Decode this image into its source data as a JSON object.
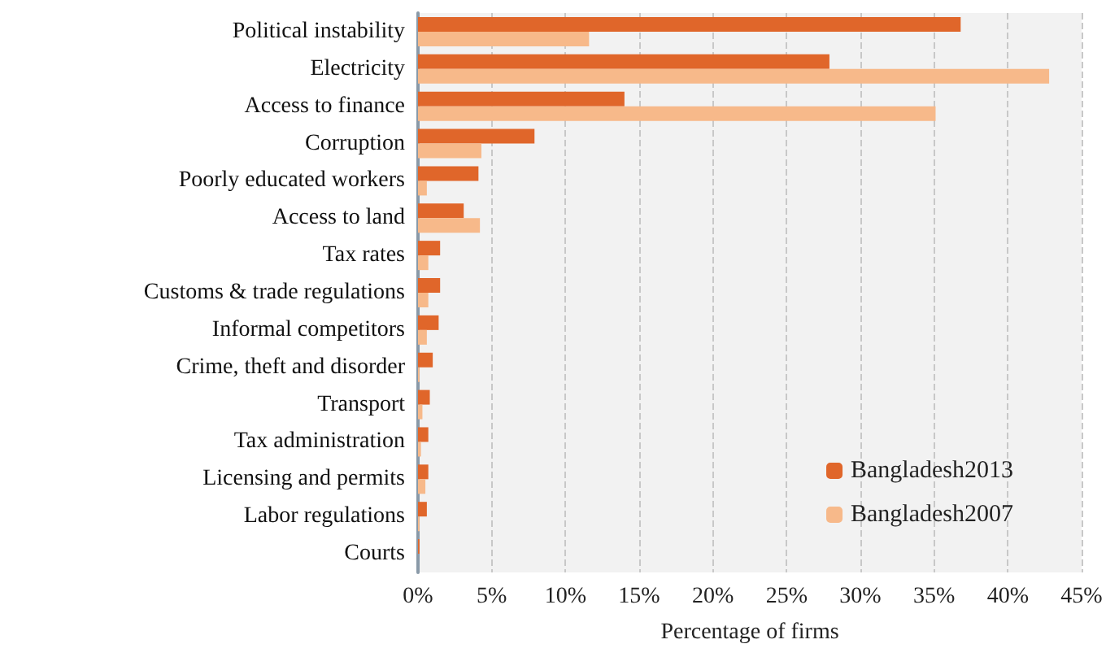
{
  "chart_data": {
    "type": "bar",
    "orientation": "horizontal",
    "xlabel": "Percentage of firms",
    "categories": [
      "Political instability",
      "Electricity",
      "Access to finance",
      "Corruption",
      "Poorly educated workers",
      "Access to land",
      "Tax rates",
      "Customs & trade regulations",
      "Informal competitors",
      "Crime, theft and disorder",
      "Transport",
      "Tax administration",
      "Licensing and permits",
      "Labor regulations",
      "Courts"
    ],
    "series": [
      {
        "name": "Bangladesh2013",
        "color": "#e0662a",
        "values": [
          36.8,
          27.9,
          14.0,
          7.9,
          4.1,
          3.1,
          1.5,
          1.5,
          1.4,
          1.0,
          0.8,
          0.7,
          0.7,
          0.6,
          0.1
        ]
      },
      {
        "name": "Bangladesh2007",
        "color": "#f7b98a",
        "values": [
          11.6,
          42.8,
          35.1,
          4.3,
          0.6,
          4.2,
          0.7,
          0.7,
          0.6,
          0.1,
          0.3,
          0.2,
          0.5,
          0.1,
          0
        ]
      }
    ],
    "xlim": [
      0,
      45
    ],
    "xticks": [
      {
        "value": 0,
        "label": "0%"
      },
      {
        "value": 5,
        "label": "5%"
      },
      {
        "value": 10,
        "label": "10%"
      },
      {
        "value": 15,
        "label": "15%"
      },
      {
        "value": 20,
        "label": "20%"
      },
      {
        "value": 25,
        "label": "25%"
      },
      {
        "value": 30,
        "label": "30%"
      },
      {
        "value": 35,
        "label": "35%"
      },
      {
        "value": 40,
        "label": "40%"
      },
      {
        "value": 45,
        "label": "45%"
      }
    ],
    "grid": "x",
    "legend": "bottom right"
  }
}
